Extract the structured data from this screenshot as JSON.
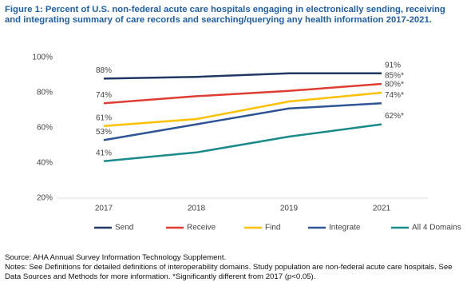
{
  "chart_data": {
    "type": "line",
    "title": "Figure 1: Percent of U.S. non-federal acute care hospitals engaging in electronically sending, receiving and integrating summary of care records and searching/querying any health information 2017-2021.",
    "categories": [
      "2017",
      "2018",
      "2019",
      "2021"
    ],
    "series": [
      {
        "name": "Send",
        "color": "#1f3864",
        "values": [
          88,
          89,
          91,
          91
        ],
        "value_labels": [
          "88%",
          null,
          null,
          "91%"
        ]
      },
      {
        "name": "Receive",
        "color": "#e03c31",
        "values": [
          74,
          78,
          81,
          85
        ],
        "value_labels": [
          "74%",
          null,
          null,
          "85%*"
        ]
      },
      {
        "name": "Find",
        "color": "#ffc000",
        "values": [
          61,
          65,
          75,
          80
        ],
        "value_labels": [
          "61%",
          null,
          null,
          "80%*"
        ]
      },
      {
        "name": "Integrate",
        "color": "#2e5597",
        "values": [
          53,
          62,
          71,
          74
        ],
        "value_labels": [
          "53%",
          null,
          null,
          "74%*"
        ]
      },
      {
        "name": "All 4 Domains",
        "color": "#1a8a8a",
        "values": [
          41,
          46,
          55,
          62
        ],
        "value_labels": [
          "41%",
          null,
          null,
          "62%*"
        ]
      }
    ],
    "ylim": [
      20,
      100
    ],
    "yticks": [
      {
        "value": 20,
        "label": "20%"
      },
      {
        "value": 40,
        "label": "40%"
      },
      {
        "value": 60,
        "label": "60%"
      },
      {
        "value": 80,
        "label": "80%"
      },
      {
        "value": 100,
        "label": "100%"
      }
    ],
    "grid": false,
    "legend": "bottom",
    "notes": [
      "Source: AHA Annual Survey Information Technology Supplement.",
      "Notes: See Definitions for detailed definitions of interoperability domains. Study population are non-federal acute care hospitals. See Data Sources and Methods for more information. *Significantly different from 2017 (p<0.05)."
    ]
  }
}
